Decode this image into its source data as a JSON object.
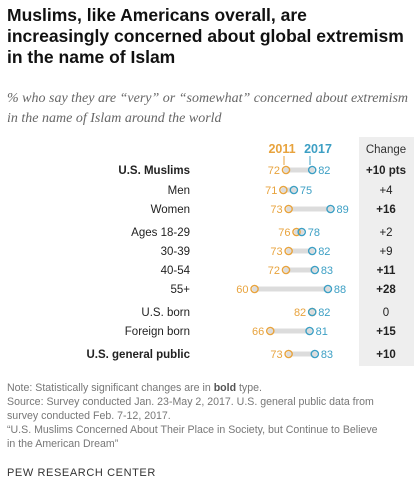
{
  "chart_data": {
    "type": "dot",
    "title": "Muslims, like Americans overall, are increasingly concerned about global extremism in the name of Islam",
    "subtitle": "% who say they are “very” or “somewhat” concerned about extremism in the name of Islam around the world",
    "series": [
      {
        "name": "2011",
        "color": "#e8a33d"
      },
      {
        "name": "2017",
        "color": "#3c9fc4"
      }
    ],
    "change_header": "Change",
    "rows": [
      {
        "label": "U.S. Muslims",
        "v2011": 72,
        "v2017": 82,
        "change": "+10 pts",
        "bold_label": true,
        "bold_change": true
      },
      {
        "label": "Men",
        "v2011": 71,
        "v2017": 75,
        "change": "+4",
        "bold_label": false,
        "bold_change": false
      },
      {
        "label": "Women",
        "v2011": 73,
        "v2017": 89,
        "change": "+16",
        "bold_label": false,
        "bold_change": true
      },
      {
        "label": "Ages 18-29",
        "v2011": 76,
        "v2017": 78,
        "change": "+2",
        "bold_label": false,
        "bold_change": false
      },
      {
        "label": "30-39",
        "v2011": 73,
        "v2017": 82,
        "change": "+9",
        "bold_label": false,
        "bold_change": false
      },
      {
        "label": "40-54",
        "v2011": 72,
        "v2017": 83,
        "change": "+11",
        "bold_label": false,
        "bold_change": true
      },
      {
        "label": "55+",
        "v2011": 60,
        "v2017": 88,
        "change": "+28",
        "bold_label": false,
        "bold_change": true
      },
      {
        "label": "U.S. born",
        "v2011": 82,
        "v2017": 82,
        "change": "0",
        "bold_label": false,
        "bold_change": false
      },
      {
        "label": "Foreign born",
        "v2011": 66,
        "v2017": 81,
        "change": "+15",
        "bold_label": false,
        "bold_change": true
      },
      {
        "label": "U.S. general public",
        "v2011": 73,
        "v2017": 83,
        "change": "+10",
        "bold_label": true,
        "bold_change": true
      }
    ]
  },
  "footer": {
    "note_prefix": "Note: Statistically significant changes are in ",
    "note_bold": "bold",
    "note_suffix": " type.",
    "source_1": "Source: Survey conducted Jan. 23-May 2, 2017. U.S. general public data from",
    "source_2": "survey conducted Feb. 7-12, 2017.",
    "report_1": "“U.S. Muslims Concerned About Their Place in Society, but Continue to Believe",
    "report_2": "in the American Dream”"
  },
  "brand": "PEW RESEARCH CENTER"
}
